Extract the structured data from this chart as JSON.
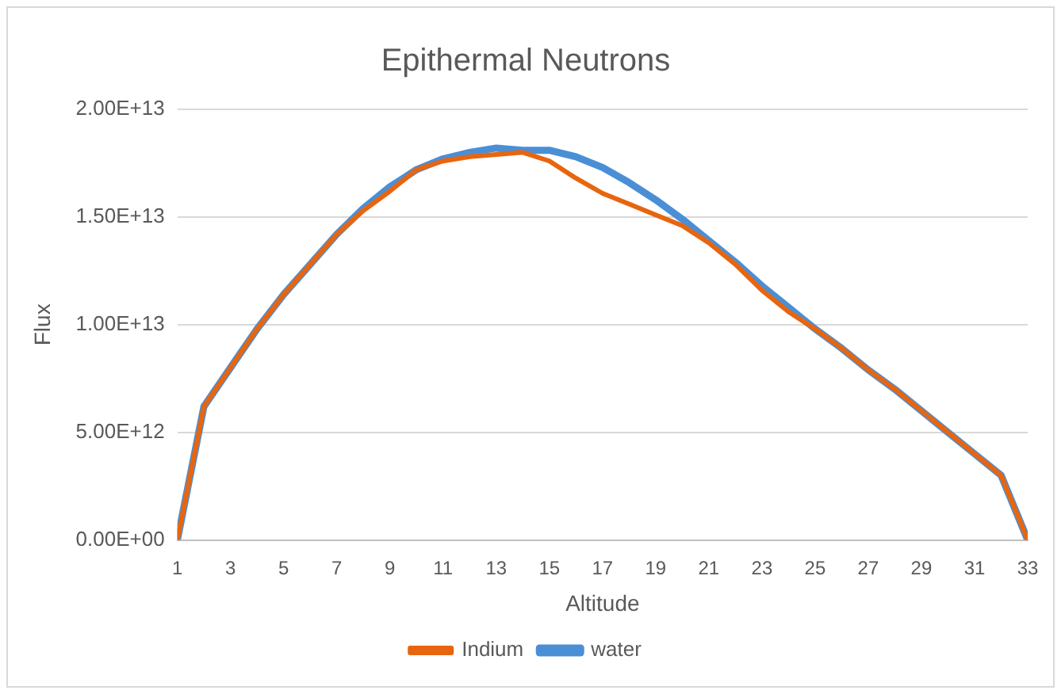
{
  "chart_data": {
    "type": "line",
    "title": "Epithermal Neutrons",
    "xlabel": "Altitude",
    "ylabel": "Flux",
    "x": [
      1,
      2,
      3,
      4,
      5,
      6,
      7,
      8,
      9,
      10,
      11,
      12,
      13,
      14,
      15,
      16,
      17,
      18,
      19,
      20,
      21,
      22,
      23,
      24,
      25,
      26,
      27,
      28,
      29,
      30,
      31,
      32,
      33
    ],
    "xlim": [
      1,
      33
    ],
    "xticks": [
      1,
      3,
      5,
      7,
      9,
      11,
      13,
      15,
      17,
      19,
      21,
      23,
      25,
      27,
      29,
      31,
      33
    ],
    "series": [
      {
        "name": "water",
        "color": "#4a8fd6",
        "values": [
          0,
          6200000000000.0,
          8000000000000.0,
          9800000000000.0,
          11400000000000.0,
          12800000000000.0,
          14200000000000.0,
          15400000000000.0,
          16400000000000.0,
          17200000000000.0,
          17700000000000.0,
          18000000000000.0,
          18200000000000.0,
          18100000000000.0,
          18100000000000.0,
          17800000000000.0,
          17300000000000.0,
          16600000000000.0,
          15800000000000.0,
          14900000000000.0,
          13900000000000.0,
          12900000000000.0,
          11800000000000.0,
          10800000000000.0,
          9800000000000.0,
          8900000000000.0,
          7900000000000.0,
          7000000000000.0,
          6000000000000.0,
          5000000000000.0,
          4000000000000.0,
          3000000000000.0,
          0
        ]
      },
      {
        "name": "Indium",
        "color": "#e8650f",
        "values": [
          0,
          6200000000000.0,
          8000000000000.0,
          9800000000000.0,
          11400000000000.0,
          12800000000000.0,
          14200000000000.0,
          15300000000000.0,
          16200000000000.0,
          17200000000000.0,
          17600000000000.0,
          17800000000000.0,
          17900000000000.0,
          18000000000000.0,
          17600000000000.0,
          16800000000000.0,
          16100000000000.0,
          15600000000000.0,
          15100000000000.0,
          14600000000000.0,
          13800000000000.0,
          12800000000000.0,
          11600000000000.0,
          10600000000000.0,
          9800000000000.0,
          8900000000000.0,
          7900000000000.0,
          7000000000000.0,
          6000000000000.0,
          5000000000000.0,
          4000000000000.0,
          3000000000000.0,
          0
        ]
      }
    ],
    "ylim": [
      0,
      20000000000000.0
    ],
    "yticks": [
      {
        "value": 0,
        "label": "0.00E+00"
      },
      {
        "value": 5000000000000.0,
        "label": "5.00E+12"
      },
      {
        "value": 10000000000000.0,
        "label": "1.00E+13"
      },
      {
        "value": 15000000000000.0,
        "label": "1.50E+13"
      },
      {
        "value": 20000000000000.0,
        "label": "2.00E+13"
      }
    ],
    "grid": "y",
    "legend": "bottom",
    "marker": "none",
    "line_style": "solid"
  }
}
